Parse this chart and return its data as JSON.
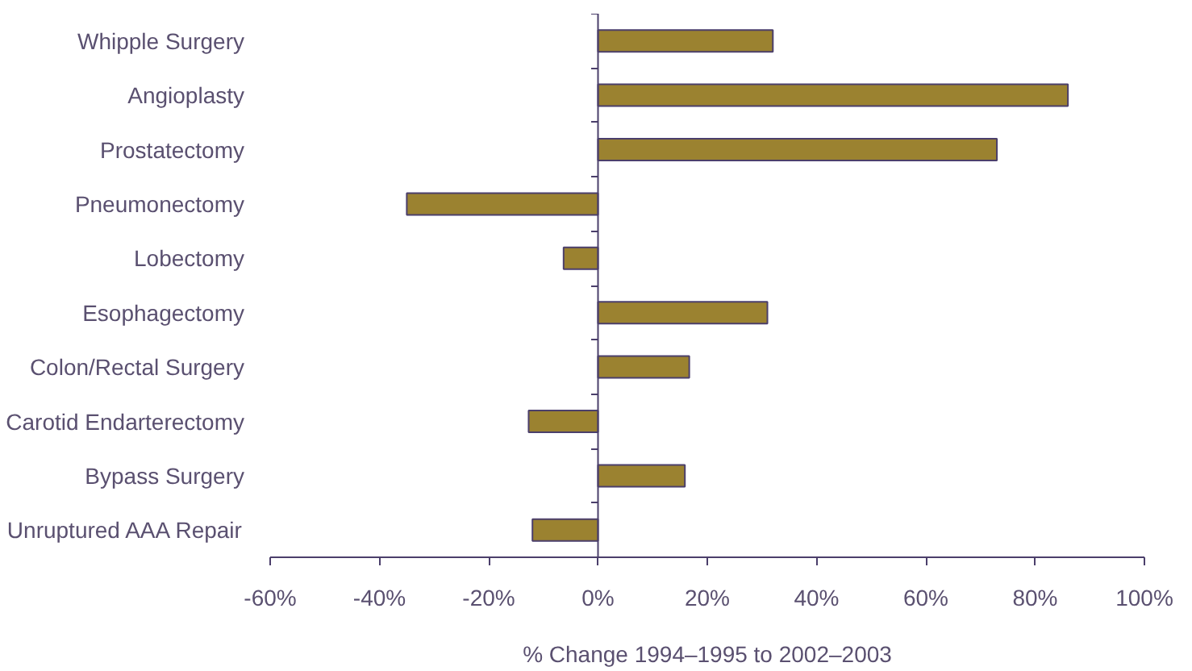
{
  "chart_data": {
    "type": "bar",
    "orientation": "horizontal",
    "categories": [
      "Whipple Surgery",
      "Angioplasty",
      "Prostatectomy",
      "Pneumonectomy",
      "Lobectomy",
      "Esophagectomy",
      "Colon/Rectal Surgery",
      "Carotid Endarterectomy",
      "Bypass Surgery",
      "Unruptured AAA Repair"
    ],
    "values": [
      32,
      86,
      73,
      -35,
      -6.3,
      31,
      16.7,
      -12.7,
      15.9,
      -12
    ],
    "color": "#9b8230",
    "xlabel": "% Change 1994–1995 to 2002–2003",
    "xlim": [
      -60,
      100
    ],
    "xticks": [
      {
        "value": -60,
        "label": "-60%"
      },
      {
        "value": -40,
        "label": "-40%"
      },
      {
        "value": -20,
        "label": "-20%"
      },
      {
        "value": 0,
        "label": "0%"
      },
      {
        "value": 20,
        "label": "20%"
      },
      {
        "value": 40,
        "label": "40%"
      },
      {
        "value": 60,
        "label": "60%"
      },
      {
        "value": 80,
        "label": "80%"
      },
      {
        "value": 100,
        "label": "100%"
      }
    ],
    "ref_lines": [
      {
        "axis": "x",
        "value": 0,
        "color": "#4b3f6b"
      }
    ],
    "grid": false
  }
}
